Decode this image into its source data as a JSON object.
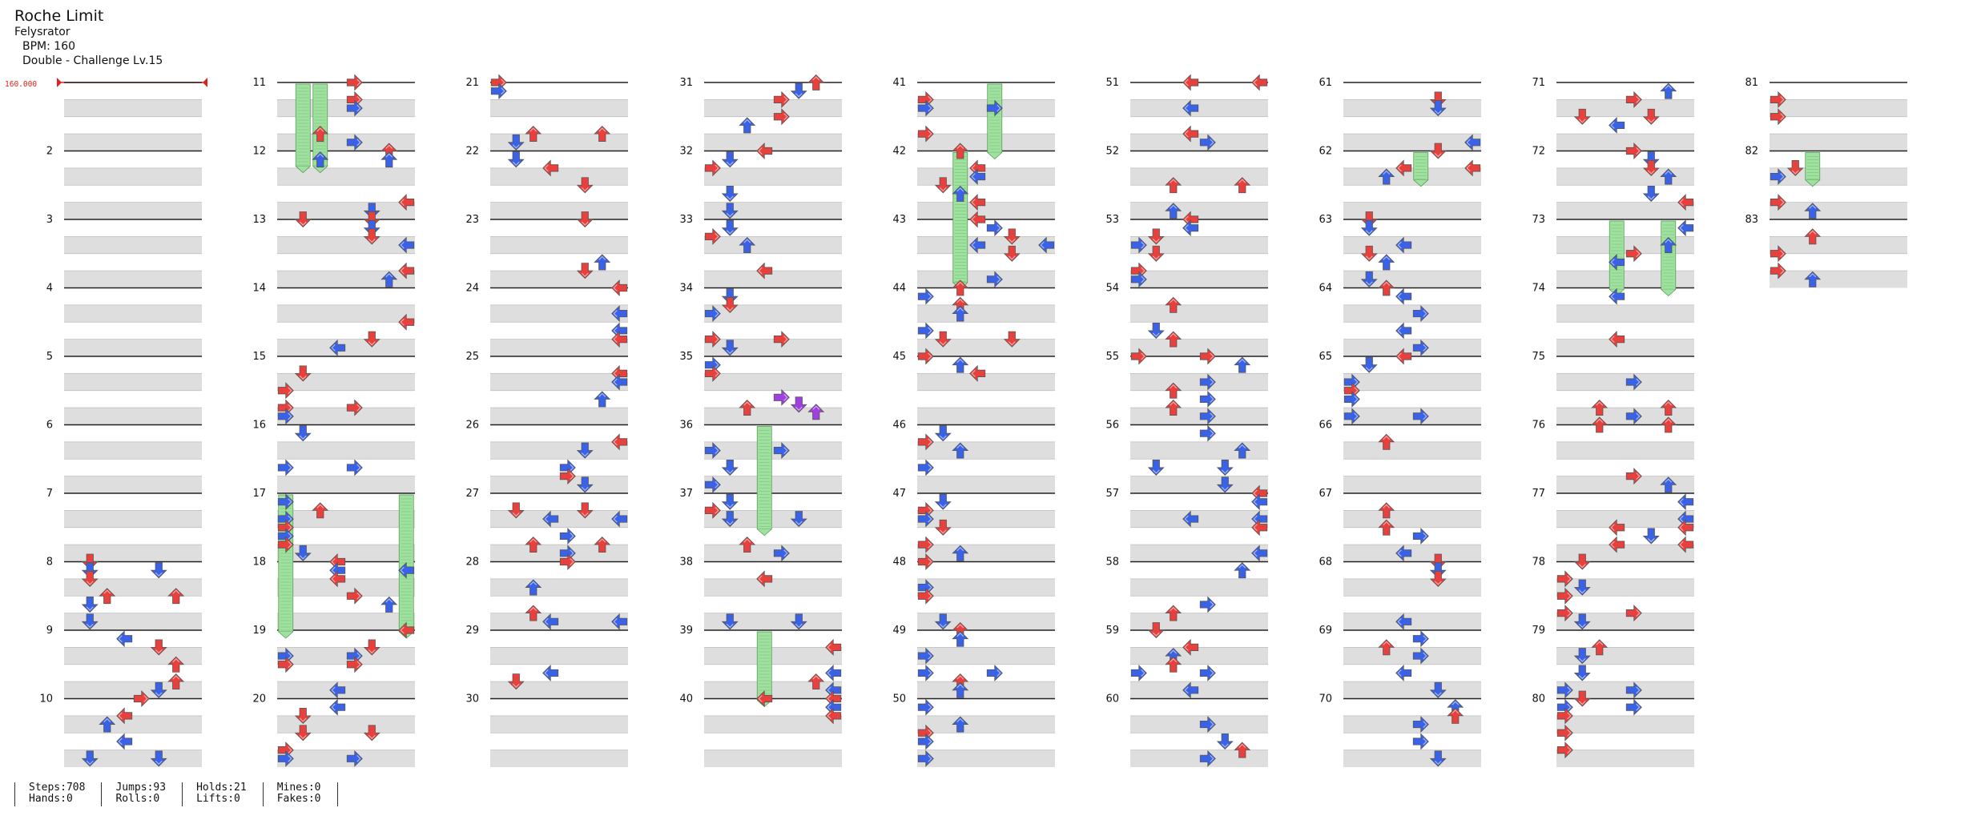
{
  "song": {
    "title": "Roche Limit",
    "artist": "Felysrator",
    "bpm_label": "BPM: 160",
    "difficulty": "Double - Challenge  Lv.15"
  },
  "bpm_marker": {
    "label": "160.000",
    "color": "#e0201e"
  },
  "stats": {
    "steps": "Steps:708",
    "hands": "Hands:0",
    "jumps": "Jumps:93",
    "rolls": "Rolls:0",
    "holds": "Holds:21",
    "lifts": "Lifts:0",
    "mines": "Mines:0",
    "fakes": "Fakes:0"
  },
  "colors": {
    "quarter": "#e8403c",
    "eighth": "#3a62e6",
    "sixteenth": "#f2dc3c",
    "twelfth": "#a040e0",
    "hold": "#9fe29f",
    "stripe": "#dedede",
    "beat_line": "#222222"
  },
  "columns": [
    {
      "start": 1,
      "measures": 10
    },
    {
      "start": 11,
      "measures": 10
    },
    {
      "start": 21,
      "measures": 10
    },
    {
      "start": 31,
      "measures": 10
    },
    {
      "start": 41,
      "measures": 10
    },
    {
      "start": 51,
      "measures": 10
    },
    {
      "start": 61,
      "measures": 10
    },
    {
      "start": 71,
      "measures": 10
    },
    {
      "start": 81,
      "measures": 3
    }
  ],
  "shown_measure_labels": [
    "2",
    "3",
    "4",
    "5",
    "6",
    "7",
    "8",
    "9",
    "10",
    "11",
    "12",
    "13",
    "14",
    "15",
    "16",
    "17",
    "18",
    "19",
    "20",
    "21",
    "22",
    "23",
    "24",
    "25",
    "26",
    "27",
    "28",
    "29",
    "30",
    "31",
    "32",
    "33",
    "34",
    "35",
    "36",
    "37",
    "38",
    "39",
    "40",
    "41",
    "42",
    "43",
    "44",
    "45",
    "46",
    "47",
    "48",
    "49",
    "50",
    "51",
    "52",
    "53",
    "54",
    "55",
    "56",
    "57",
    "58",
    "59",
    "60",
    "61",
    "62",
    "63",
    "64",
    "65",
    "66",
    "67",
    "68",
    "69",
    "70",
    "71",
    "72",
    "73",
    "74",
    "75",
    "76",
    "77",
    "78",
    "79",
    "80",
    "81",
    "82",
    "83"
  ]
}
